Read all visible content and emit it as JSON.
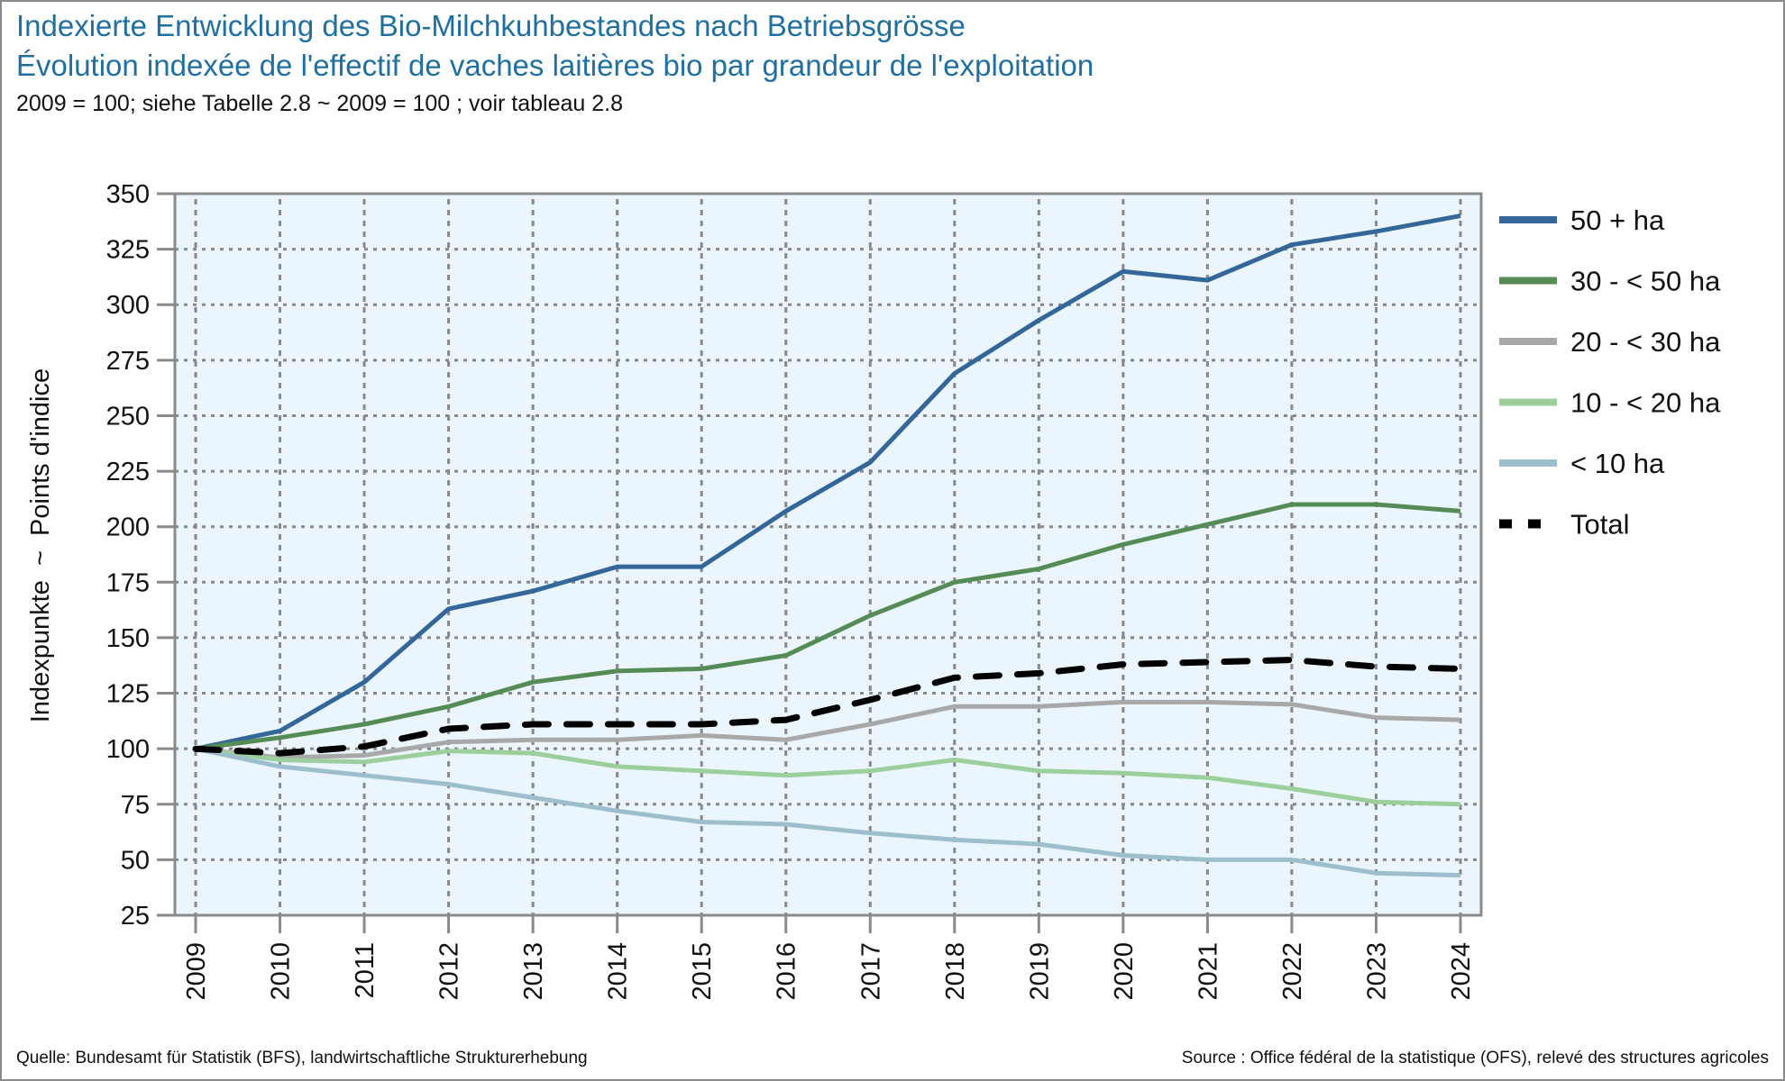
{
  "header": {
    "title_de": "Indexierte Entwicklung des Bio-Milchkuhbestandes nach Betriebsgrösse",
    "title_fr": "Évolution indexée de l'effectif de vaches laitières bio par grandeur de l'exploitation",
    "subtitle": "2009 = 100; siehe Tabelle 2.8  ~  2009 = 100 ; voir tableau 2.8"
  },
  "footer": {
    "source_de": "Quelle: Bundesamt für Statistik (BFS), landwirtschaftliche Strukturerhebung",
    "source_fr": "Source : Office fédéral de la statistique (OFS), relevé des structures agricoles"
  },
  "chart_data": {
    "type": "line",
    "title": "Indexierte Entwicklung des Bio-Milchkuhbestandes nach Betriebsgrösse",
    "xlabel": "",
    "ylabel": "Indexpunkte  ~  Points d'indice",
    "x": [
      "2009",
      "2010",
      "2011",
      "2012",
      "2013",
      "2014",
      "2015",
      "2016",
      "2017",
      "2018",
      "2019",
      "2020",
      "2021",
      "2022",
      "2023",
      "2024"
    ],
    "ylim": [
      25,
      350
    ],
    "yticks": [
      25,
      50,
      75,
      100,
      125,
      150,
      175,
      200,
      225,
      250,
      275,
      300,
      325,
      350
    ],
    "grid": true,
    "legend_position": "right",
    "series": [
      {
        "name": "50 + ha",
        "color": "#336699",
        "dashed": false,
        "values": [
          100,
          108,
          130,
          163,
          171,
          182,
          182,
          207,
          229,
          269,
          293,
          315,
          311,
          327,
          333,
          340
        ]
      },
      {
        "name": "30 - < 50 ha",
        "color": "#558b55",
        "dashed": false,
        "values": [
          100,
          105,
          111,
          119,
          130,
          135,
          136,
          142,
          160,
          175,
          181,
          192,
          201,
          210,
          210,
          207
        ]
      },
      {
        "name": "20 - < 30 ha",
        "color": "#a8a8a8",
        "dashed": false,
        "values": [
          100,
          96,
          97,
          103,
          104,
          104,
          106,
          104,
          111,
          119,
          119,
          121,
          121,
          120,
          114,
          113
        ]
      },
      {
        "name": "10 - < 20 ha",
        "color": "#9ccf9c",
        "dashed": false,
        "values": [
          100,
          95,
          94,
          99,
          98,
          92,
          90,
          88,
          90,
          95,
          90,
          89,
          87,
          82,
          76,
          75
        ]
      },
      {
        "name": "< 10 ha",
        "color": "#9bbfcd",
        "dashed": false,
        "values": [
          100,
          92,
          88,
          84,
          78,
          72,
          67,
          66,
          62,
          59,
          57,
          52,
          50,
          50,
          44,
          43
        ]
      },
      {
        "name": "Total",
        "color": "#000000",
        "dashed": true,
        "values": [
          100,
          98,
          101,
          109,
          111,
          111,
          111,
          113,
          122,
          132,
          134,
          138,
          139,
          140,
          137,
          136
        ]
      }
    ]
  },
  "colors": {
    "title": "#1f6fa0",
    "plot_background": "#ebf5fd",
    "axis": "#8a8a8a"
  }
}
